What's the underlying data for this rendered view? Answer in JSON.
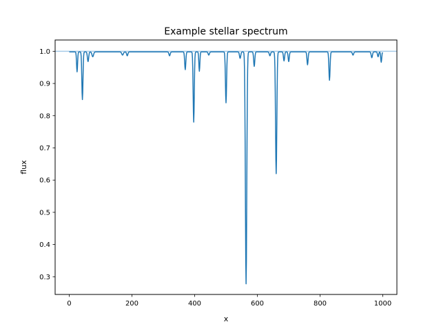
{
  "chart_data": {
    "type": "line",
    "title": "Example stellar spectrum",
    "xlabel": "x",
    "ylabel": "flux",
    "xlim": [
      -45,
      1045
    ],
    "ylim": [
      0.245,
      1.035
    ],
    "xticks": [
      0,
      200,
      400,
      600,
      800,
      1000
    ],
    "yticks": [
      0.3,
      0.4,
      0.5,
      0.6,
      0.7,
      0.8,
      0.9,
      1.0
    ],
    "xtick_labels": [
      "0",
      "200",
      "400",
      "600",
      "800",
      "1000"
    ],
    "ytick_labels": [
      "0.3",
      "0.4",
      "0.5",
      "0.6",
      "0.7",
      "0.8",
      "0.9",
      "1.0"
    ],
    "grid": false,
    "legend": "none",
    "reference_line": {
      "y": 1.0,
      "color": "#a6cbe8"
    },
    "series": [
      {
        "color": "#1f77b4",
        "continuum": 0.998,
        "x_range": [
          0,
          999
        ],
        "absorption_lines": [
          {
            "center": 25,
            "depth": 0.062,
            "width": 1.6
          },
          {
            "center": 42,
            "depth": 0.148,
            "width": 1.8
          },
          {
            "center": 60,
            "depth": 0.03,
            "width": 2.0
          },
          {
            "center": 75,
            "depth": 0.015,
            "width": 2.5
          },
          {
            "center": 170,
            "depth": 0.01,
            "width": 2.5
          },
          {
            "center": 185,
            "depth": 0.012,
            "width": 2.0
          },
          {
            "center": 320,
            "depth": 0.012,
            "width": 2.0
          },
          {
            "center": 370,
            "depth": 0.055,
            "width": 1.8
          },
          {
            "center": 397,
            "depth": 0.218,
            "width": 1.8
          },
          {
            "center": 415,
            "depth": 0.06,
            "width": 1.6
          },
          {
            "center": 445,
            "depth": 0.01,
            "width": 2.0
          },
          {
            "center": 500,
            "depth": 0.158,
            "width": 1.8
          },
          {
            "center": 545,
            "depth": 0.02,
            "width": 2.0
          },
          {
            "center": 564,
            "depth": 0.72,
            "width": 2.2
          },
          {
            "center": 590,
            "depth": 0.045,
            "width": 1.8
          },
          {
            "center": 640,
            "depth": 0.012,
            "width": 2.0
          },
          {
            "center": 660,
            "depth": 0.378,
            "width": 2.0
          },
          {
            "center": 685,
            "depth": 0.028,
            "width": 1.8
          },
          {
            "center": 700,
            "depth": 0.03,
            "width": 1.8
          },
          {
            "center": 760,
            "depth": 0.04,
            "width": 1.8
          },
          {
            "center": 830,
            "depth": 0.088,
            "width": 1.8
          },
          {
            "center": 905,
            "depth": 0.01,
            "width": 2.0
          },
          {
            "center": 965,
            "depth": 0.018,
            "width": 2.0
          },
          {
            "center": 985,
            "depth": 0.015,
            "width": 1.8
          },
          {
            "center": 995,
            "depth": 0.032,
            "width": 1.6
          }
        ]
      }
    ]
  }
}
